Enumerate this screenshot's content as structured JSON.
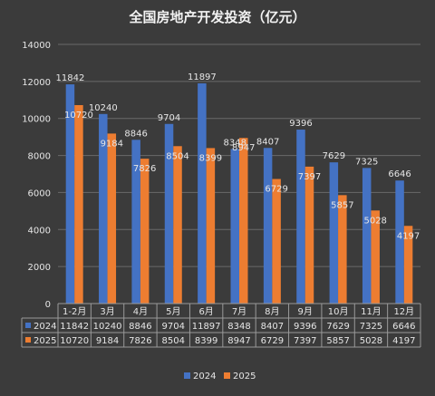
{
  "chart_data": {
    "type": "bar",
    "title": "全国房地产开发投资（亿元）",
    "categories": [
      "1-2月",
      "3月",
      "4月",
      "5月",
      "6月",
      "7月",
      "8月",
      "9月",
      "10月",
      "11月",
      "12月"
    ],
    "series": [
      {
        "name": "2024",
        "color": "#4472c4",
        "values": [
          11842,
          10240,
          8846,
          9704,
          11897,
          8348,
          8407,
          9396,
          7629,
          7325,
          6646
        ]
      },
      {
        "name": "2025",
        "color": "#ed7d31",
        "values": [
          10720,
          9184,
          7826,
          8504,
          8399,
          8947,
          6729,
          7397,
          5857,
          5028,
          4197
        ]
      }
    ],
    "ylim": [
      0,
      14000
    ],
    "yticks": [
      0,
      2000,
      4000,
      6000,
      8000,
      10000,
      12000,
      14000
    ],
    "grid": true,
    "legend": "bottom",
    "data_table": true
  }
}
